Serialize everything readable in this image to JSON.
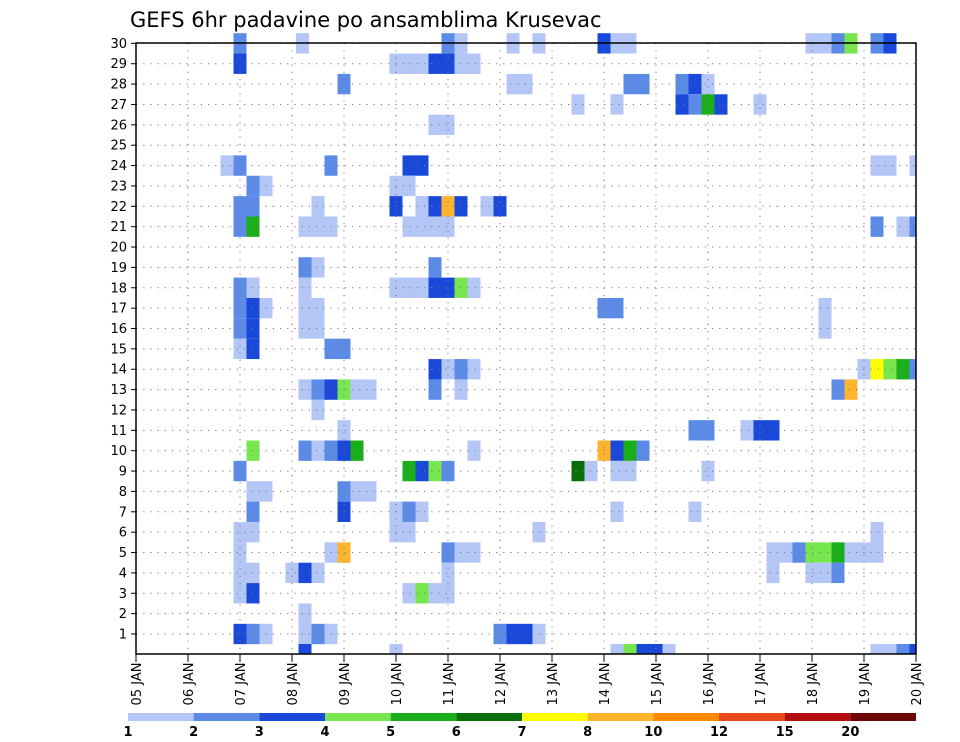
{
  "chart_data": {
    "type": "heatmap",
    "title": "GEFS 6hr padavine po ansamblima Krusevac",
    "y_ticks": [
      "1",
      "2",
      "3",
      "4",
      "5",
      "6",
      "7",
      "8",
      "9",
      "10",
      "11",
      "12",
      "13",
      "14",
      "15",
      "16",
      "17",
      "18",
      "19",
      "20",
      "21",
      "22",
      "23",
      "24",
      "25",
      "26",
      "27",
      "28",
      "29",
      "30"
    ],
    "x_ticks": [
      "05 JAN",
      "06 JAN",
      "07 JAN",
      "08 JAN",
      "09 JAN",
      "10 JAN",
      "11 JAN",
      "12 JAN",
      "13 JAN",
      "14 JAN",
      "15 JAN",
      "16 JAN",
      "17 JAN",
      "18 JAN",
      "19 JAN",
      "20 JAN"
    ],
    "colorbar": {
      "labels": [
        "1",
        "2",
        "3",
        "4",
        "5",
        "6",
        "7",
        "8",
        "10",
        "12",
        "15",
        "20"
      ],
      "colors": [
        "#b3c6f5",
        "#5b8be6",
        "#1a49d9",
        "#78e64e",
        "#1aae1a",
        "#0a6e0a",
        "#ffff00",
        "#ffb42d",
        "#ff8a00",
        "#e84a1a",
        "#b40e0e",
        "#6e0808"
      ]
    },
    "value_units": "colorbar class (1-12)",
    "cells": [
      {
        "m": 30,
        "day": 7,
        "c": 2
      },
      {
        "m": 30,
        "day": 8.2,
        "c": 1
      },
      {
        "m": 30,
        "day": 11,
        "c": 2
      },
      {
        "m": 30,
        "day": 11.25,
        "c": 1
      },
      {
        "m": 30,
        "day": 12.25,
        "c": 1
      },
      {
        "m": 30,
        "day": 12.75,
        "c": 1
      },
      {
        "m": 30,
        "day": 14,
        "c": 3
      },
      {
        "m": 30,
        "day": 14.25,
        "c": 1
      },
      {
        "m": 30,
        "day": 14.5,
        "c": 1
      },
      {
        "m": 30,
        "day": 18,
        "c": 1
      },
      {
        "m": 30,
        "day": 18.25,
        "c": 1
      },
      {
        "m": 30,
        "day": 18.5,
        "c": 2
      },
      {
        "m": 30,
        "day": 18.75,
        "c": 4
      },
      {
        "m": 30,
        "day": 19.25,
        "c": 2
      },
      {
        "m": 30,
        "day": 19.5,
        "c": 3
      },
      {
        "m": 29,
        "day": 7,
        "c": 3
      },
      {
        "m": 29,
        "day": 10,
        "c": 1
      },
      {
        "m": 29,
        "day": 10.25,
        "c": 1
      },
      {
        "m": 29,
        "day": 10.5,
        "c": 1
      },
      {
        "m": 29,
        "day": 10.75,
        "c": 3
      },
      {
        "m": 29,
        "day": 11,
        "c": 3
      },
      {
        "m": 29,
        "day": 11.25,
        "c": 1
      },
      {
        "m": 29,
        "day": 11.5,
        "c": 1
      },
      {
        "m": 28,
        "day": 9,
        "c": 2
      },
      {
        "m": 28,
        "day": 12.25,
        "c": 1
      },
      {
        "m": 28,
        "day": 12.5,
        "c": 1
      },
      {
        "m": 28,
        "day": 14.5,
        "c": 2
      },
      {
        "m": 28,
        "day": 14.75,
        "c": 2
      },
      {
        "m": 28,
        "day": 15.5,
        "c": 2
      },
      {
        "m": 28,
        "day": 15.75,
        "c": 3
      },
      {
        "m": 28,
        "day": 16,
        "c": 1
      },
      {
        "m": 27,
        "day": 13.5,
        "c": 1
      },
      {
        "m": 27,
        "day": 14.25,
        "c": 1
      },
      {
        "m": 27,
        "day": 15.5,
        "c": 3
      },
      {
        "m": 27,
        "day": 15.75,
        "c": 2
      },
      {
        "m": 27,
        "day": 16,
        "c": 5
      },
      {
        "m": 27,
        "day": 16.25,
        "c": 3
      },
      {
        "m": 27,
        "day": 17,
        "c": 1
      },
      {
        "m": 26,
        "day": 10.75,
        "c": 1
      },
      {
        "m": 26,
        "day": 11,
        "c": 1
      },
      {
        "m": 24,
        "day": 6.75,
        "c": 1
      },
      {
        "m": 24,
        "day": 7,
        "c": 2
      },
      {
        "m": 24,
        "day": 8.75,
        "c": 2
      },
      {
        "m": 24,
        "day": 10.25,
        "c": 3
      },
      {
        "m": 24,
        "day": 10.5,
        "c": 3
      },
      {
        "m": 24,
        "day": 19.25,
        "c": 1
      },
      {
        "m": 24,
        "day": 19.5,
        "c": 1
      },
      {
        "m": 24,
        "day": 20,
        "c": 1
      },
      {
        "m": 23,
        "day": 7.25,
        "c": 2
      },
      {
        "m": 23,
        "day": 7.5,
        "c": 1
      },
      {
        "m": 23,
        "day": 10,
        "c": 1
      },
      {
        "m": 23,
        "day": 10.25,
        "c": 1
      },
      {
        "m": 22,
        "day": 7,
        "c": 2
      },
      {
        "m": 22,
        "day": 7.25,
        "c": 2
      },
      {
        "m": 22,
        "day": 8.5,
        "c": 1
      },
      {
        "m": 22,
        "day": 10,
        "c": 3
      },
      {
        "m": 22,
        "day": 10.5,
        "c": 1
      },
      {
        "m": 22,
        "day": 10.75,
        "c": 3
      },
      {
        "m": 22,
        "day": 11,
        "c": 8
      },
      {
        "m": 22,
        "day": 11.25,
        "c": 3
      },
      {
        "m": 22,
        "day": 11.75,
        "c": 1
      },
      {
        "m": 22,
        "day": 12,
        "c": 3
      },
      {
        "m": 21,
        "day": 7,
        "c": 2
      },
      {
        "m": 21,
        "day": 7.25,
        "c": 5
      },
      {
        "m": 21,
        "day": 8.25,
        "c": 1
      },
      {
        "m": 21,
        "day": 8.5,
        "c": 1
      },
      {
        "m": 21,
        "day": 8.75,
        "c": 1
      },
      {
        "m": 21,
        "day": 10.25,
        "c": 1
      },
      {
        "m": 21,
        "day": 10.5,
        "c": 1
      },
      {
        "m": 21,
        "day": 10.75,
        "c": 1
      },
      {
        "m": 21,
        "day": 11,
        "c": 1
      },
      {
        "m": 21,
        "day": 19.25,
        "c": 2
      },
      {
        "m": 21,
        "day": 19.75,
        "c": 1
      },
      {
        "m": 21,
        "day": 20,
        "c": 2
      },
      {
        "m": 19,
        "day": 8.25,
        "c": 2
      },
      {
        "m": 19,
        "day": 8.5,
        "c": 1
      },
      {
        "m": 19,
        "day": 10.75,
        "c": 2
      },
      {
        "m": 18,
        "day": 7,
        "c": 2
      },
      {
        "m": 18,
        "day": 7.25,
        "c": 1
      },
      {
        "m": 18,
        "day": 8.25,
        "c": 1
      },
      {
        "m": 18,
        "day": 10,
        "c": 1
      },
      {
        "m": 18,
        "day": 10.25,
        "c": 1
      },
      {
        "m": 18,
        "day": 10.5,
        "c": 1
      },
      {
        "m": 18,
        "day": 10.75,
        "c": 3
      },
      {
        "m": 18,
        "day": 11,
        "c": 3
      },
      {
        "m": 18,
        "day": 11.25,
        "c": 4
      },
      {
        "m": 18,
        "day": 11.5,
        "c": 1
      },
      {
        "m": 17,
        "day": 7,
        "c": 2
      },
      {
        "m": 17,
        "day": 7.25,
        "c": 3
      },
      {
        "m": 17,
        "day": 7.5,
        "c": 1
      },
      {
        "m": 17,
        "day": 8.25,
        "c": 1
      },
      {
        "m": 17,
        "day": 8.5,
        "c": 1
      },
      {
        "m": 17,
        "day": 14,
        "c": 2
      },
      {
        "m": 17,
        "day": 14.25,
        "c": 2
      },
      {
        "m": 17,
        "day": 18.25,
        "c": 1
      },
      {
        "m": 16,
        "day": 7,
        "c": 2
      },
      {
        "m": 16,
        "day": 7.25,
        "c": 3
      },
      {
        "m": 16,
        "day": 8.25,
        "c": 1
      },
      {
        "m": 16,
        "day": 8.5,
        "c": 1
      },
      {
        "m": 16,
        "day": 18.25,
        "c": 1
      },
      {
        "m": 15,
        "day": 7,
        "c": 1
      },
      {
        "m": 15,
        "day": 7.25,
        "c": 3
      },
      {
        "m": 15,
        "day": 8.75,
        "c": 2
      },
      {
        "m": 15,
        "day": 9,
        "c": 2
      },
      {
        "m": 14,
        "day": 10.75,
        "c": 3
      },
      {
        "m": 14,
        "day": 11,
        "c": 1
      },
      {
        "m": 14,
        "day": 11.25,
        "c": 2
      },
      {
        "m": 14,
        "day": 11.5,
        "c": 1
      },
      {
        "m": 14,
        "day": 19,
        "c": 1
      },
      {
        "m": 14,
        "day": 19.25,
        "c": 7
      },
      {
        "m": 14,
        "day": 19.5,
        "c": 4
      },
      {
        "m": 14,
        "day": 19.75,
        "c": 5
      },
      {
        "m": 14,
        "day": 20,
        "c": 2
      },
      {
        "m": 13,
        "day": 8.25,
        "c": 1
      },
      {
        "m": 13,
        "day": 8.5,
        "c": 2
      },
      {
        "m": 13,
        "day": 8.75,
        "c": 3
      },
      {
        "m": 13,
        "day": 9,
        "c": 4
      },
      {
        "m": 13,
        "day": 9.25,
        "c": 1
      },
      {
        "m": 13,
        "day": 9.5,
        "c": 1
      },
      {
        "m": 13,
        "day": 10.75,
        "c": 2
      },
      {
        "m": 13,
        "day": 11.25,
        "c": 1
      },
      {
        "m": 13,
        "day": 18.5,
        "c": 2
      },
      {
        "m": 13,
        "day": 18.75,
        "c": 8
      },
      {
        "m": 12,
        "day": 8.5,
        "c": 1
      },
      {
        "m": 11,
        "day": 9,
        "c": 1
      },
      {
        "m": 11,
        "day": 15.75,
        "c": 2
      },
      {
        "m": 11,
        "day": 16,
        "c": 2
      },
      {
        "m": 11,
        "day": 16.75,
        "c": 1
      },
      {
        "m": 11,
        "day": 17,
        "c": 3
      },
      {
        "m": 11,
        "day": 17.25,
        "c": 3
      },
      {
        "m": 10,
        "day": 7.25,
        "c": 4
      },
      {
        "m": 10,
        "day": 8.25,
        "c": 2
      },
      {
        "m": 10,
        "day": 8.5,
        "c": 1
      },
      {
        "m": 10,
        "day": 8.75,
        "c": 2
      },
      {
        "m": 10,
        "day": 9,
        "c": 3
      },
      {
        "m": 10,
        "day": 9.25,
        "c": 5
      },
      {
        "m": 10,
        "day": 11.5,
        "c": 1
      },
      {
        "m": 10,
        "day": 14,
        "c": 8
      },
      {
        "m": 10,
        "day": 14.25,
        "c": 3
      },
      {
        "m": 10,
        "day": 14.5,
        "c": 5
      },
      {
        "m": 10,
        "day": 14.75,
        "c": 2
      },
      {
        "m": 9,
        "day": 7,
        "c": 2
      },
      {
        "m": 9,
        "day": 10.25,
        "c": 5
      },
      {
        "m": 9,
        "day": 10.5,
        "c": 3
      },
      {
        "m": 9,
        "day": 10.75,
        "c": 4
      },
      {
        "m": 9,
        "day": 11,
        "c": 2
      },
      {
        "m": 9,
        "day": 13.5,
        "c": 6
      },
      {
        "m": 9,
        "day": 13.75,
        "c": 1
      },
      {
        "m": 9,
        "day": 14.25,
        "c": 1
      },
      {
        "m": 9,
        "day": 14.5,
        "c": 1
      },
      {
        "m": 9,
        "day": 16,
        "c": 1
      },
      {
        "m": 8,
        "day": 7.25,
        "c": 1
      },
      {
        "m": 8,
        "day": 7.5,
        "c": 1
      },
      {
        "m": 8,
        "day": 9,
        "c": 2
      },
      {
        "m": 8,
        "day": 9.25,
        "c": 1
      },
      {
        "m": 8,
        "day": 9.5,
        "c": 1
      },
      {
        "m": 7,
        "day": 7.25,
        "c": 2
      },
      {
        "m": 7,
        "day": 9,
        "c": 3
      },
      {
        "m": 7,
        "day": 10,
        "c": 1
      },
      {
        "m": 7,
        "day": 10.25,
        "c": 2
      },
      {
        "m": 7,
        "day": 10.5,
        "c": 1
      },
      {
        "m": 7,
        "day": 14.25,
        "c": 1
      },
      {
        "m": 7,
        "day": 15.75,
        "c": 1
      },
      {
        "m": 6,
        "day": 7,
        "c": 1
      },
      {
        "m": 6,
        "day": 7.25,
        "c": 1
      },
      {
        "m": 6,
        "day": 10,
        "c": 1
      },
      {
        "m": 6,
        "day": 10.25,
        "c": 1
      },
      {
        "m": 6,
        "day": 12.75,
        "c": 1
      },
      {
        "m": 6,
        "day": 19.25,
        "c": 1
      },
      {
        "m": 5,
        "day": 7,
        "c": 1
      },
      {
        "m": 5,
        "day": 8.75,
        "c": 1
      },
      {
        "m": 5,
        "day": 9,
        "c": 8
      },
      {
        "m": 5,
        "day": 11,
        "c": 2
      },
      {
        "m": 5,
        "day": 11.25,
        "c": 1
      },
      {
        "m": 5,
        "day": 11.5,
        "c": 1
      },
      {
        "m": 5,
        "day": 17.25,
        "c": 1
      },
      {
        "m": 5,
        "day": 17.5,
        "c": 1
      },
      {
        "m": 5,
        "day": 17.75,
        "c": 2
      },
      {
        "m": 5,
        "day": 18,
        "c": 4
      },
      {
        "m": 5,
        "day": 18.25,
        "c": 4
      },
      {
        "m": 5,
        "day": 18.5,
        "c": 5
      },
      {
        "m": 5,
        "day": 18.75,
        "c": 1
      },
      {
        "m": 5,
        "day": 19,
        "c": 1
      },
      {
        "m": 5,
        "day": 19.25,
        "c": 1
      },
      {
        "m": 4,
        "day": 7,
        "c": 1
      },
      {
        "m": 4,
        "day": 7.25,
        "c": 1
      },
      {
        "m": 4,
        "day": 8,
        "c": 1
      },
      {
        "m": 4,
        "day": 8.25,
        "c": 3
      },
      {
        "m": 4,
        "day": 8.5,
        "c": 1
      },
      {
        "m": 4,
        "day": 11,
        "c": 1
      },
      {
        "m": 4,
        "day": 17.25,
        "c": 1
      },
      {
        "m": 4,
        "day": 18,
        "c": 1
      },
      {
        "m": 4,
        "day": 18.25,
        "c": 1
      },
      {
        "m": 4,
        "day": 18.5,
        "c": 2
      },
      {
        "m": 3,
        "day": 7,
        "c": 1
      },
      {
        "m": 3,
        "day": 7.25,
        "c": 3
      },
      {
        "m": 3,
        "day": 10.25,
        "c": 1
      },
      {
        "m": 3,
        "day": 10.5,
        "c": 4
      },
      {
        "m": 3,
        "day": 10.75,
        "c": 1
      },
      {
        "m": 3,
        "day": 11,
        "c": 1
      },
      {
        "m": 2,
        "day": 8.25,
        "c": 1
      },
      {
        "m": 1,
        "day": 7,
        "c": 3
      },
      {
        "m": 1,
        "day": 7.25,
        "c": 2
      },
      {
        "m": 1,
        "day": 7.5,
        "c": 1
      },
      {
        "m": 1,
        "day": 8.25,
        "c": 1
      },
      {
        "m": 1,
        "day": 8.5,
        "c": 2
      },
      {
        "m": 1,
        "day": 8.75,
        "c": 1
      },
      {
        "m": 1,
        "day": 12,
        "c": 2
      },
      {
        "m": 1,
        "day": 12.25,
        "c": 3
      },
      {
        "m": 1,
        "day": 12.5,
        "c": 3
      },
      {
        "m": 1,
        "day": 12.75,
        "c": 1
      },
      {
        "m": 0,
        "day": 8.25,
        "c": 3
      },
      {
        "m": 0,
        "day": 10,
        "c": 1
      },
      {
        "m": 0,
        "day": 14.25,
        "c": 1
      },
      {
        "m": 0,
        "day": 14.5,
        "c": 4
      },
      {
        "m": 0,
        "day": 14.75,
        "c": 3
      },
      {
        "m": 0,
        "day": 15,
        "c": 3
      },
      {
        "m": 0,
        "day": 15.25,
        "c": 1
      },
      {
        "m": 0,
        "day": 19.25,
        "c": 1
      },
      {
        "m": 0,
        "day": 19.5,
        "c": 1
      },
      {
        "m": 0,
        "day": 19.75,
        "c": 2
      },
      {
        "m": 0,
        "day": 20,
        "c": 3
      }
    ]
  }
}
